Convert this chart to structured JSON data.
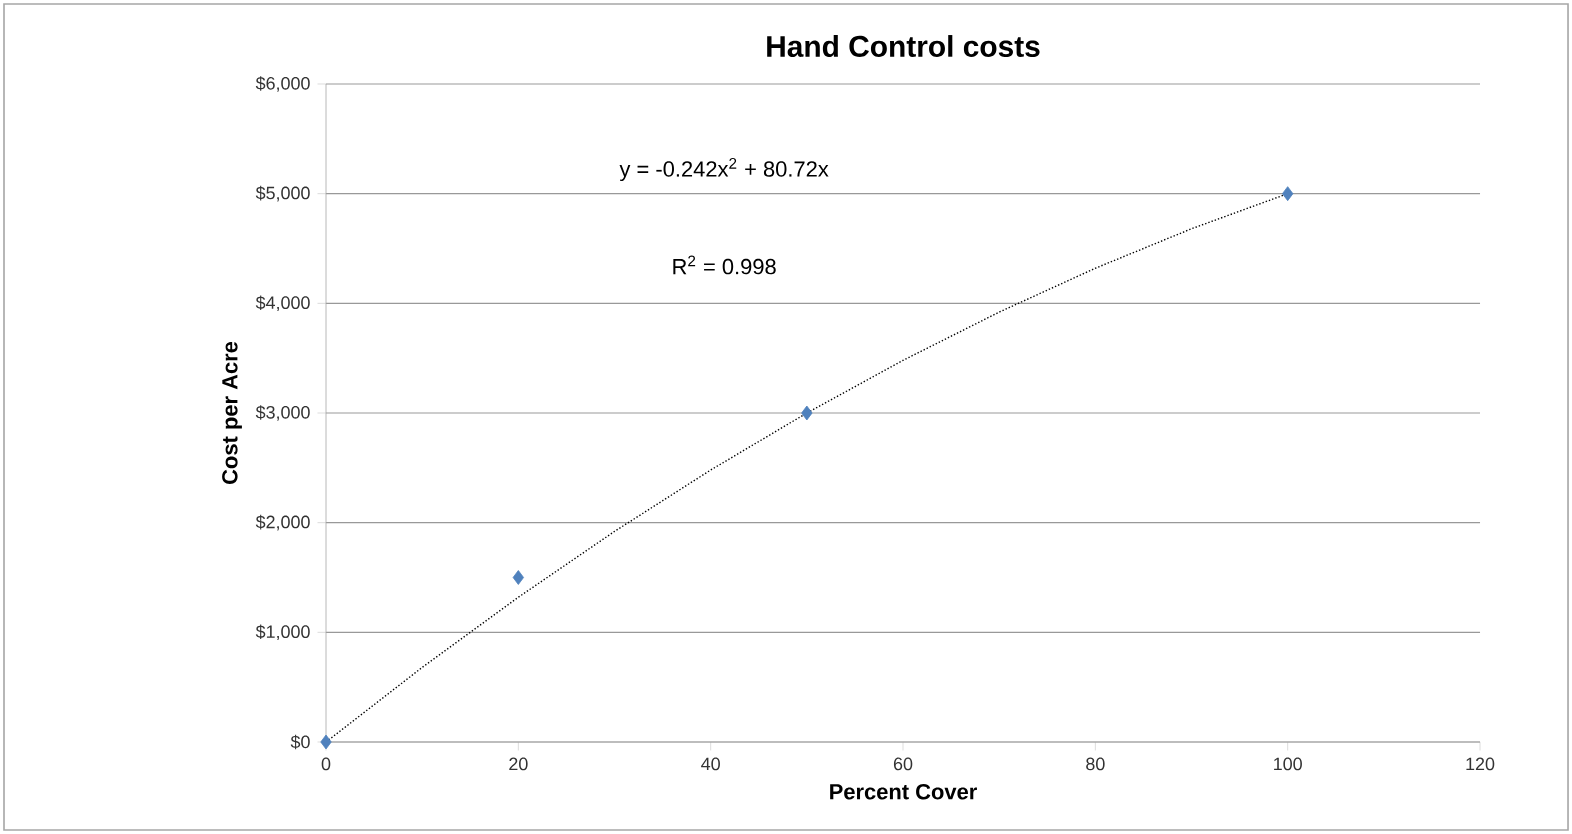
{
  "chart_data": {
    "type": "scatter",
    "title": "Hand Control costs",
    "xlabel": "Percent Cover",
    "ylabel": "Cost per Acre",
    "annotations": [
      "y = -0.242x$^{2}$ + 80.72x",
      "R$^{2}$ = 0.998"
    ],
    "series": [
      {
        "color": "#4f81bd",
        "marker": "diamond",
        "x": [
          0,
          20,
          50,
          100
        ],
        "values": [
          0,
          1500,
          3000,
          5000
        ]
      },
      {
        "type": "line",
        "color": "#000000",
        "line_style": "dotted",
        "marker": "none",
        "x": [
          0,
          10,
          20,
          30,
          40,
          50,
          60,
          70,
          80,
          90,
          100
        ],
        "values": [
          0,
          680,
          1320,
          1920,
          2480,
          3000,
          3480,
          3920,
          4320,
          4680,
          5000
        ]
      }
    ],
    "xlim": [
      0,
      120
    ],
    "xticks": [
      0,
      20,
      40,
      60,
      80,
      100,
      120
    ],
    "ylim": [
      0,
      6000
    ],
    "yticks": [
      {
        "value": 0,
        "label": "$0"
      },
      {
        "value": 1000,
        "label": "$1,000"
      },
      {
        "value": 2000,
        "label": "$2,000"
      },
      {
        "value": 3000,
        "label": "$3,000"
      },
      {
        "value": 4000,
        "label": "$4,000"
      },
      {
        "value": 5000,
        "label": "$5,000"
      },
      {
        "value": 6000,
        "label": "$6,000"
      }
    ],
    "grid": "y"
  }
}
